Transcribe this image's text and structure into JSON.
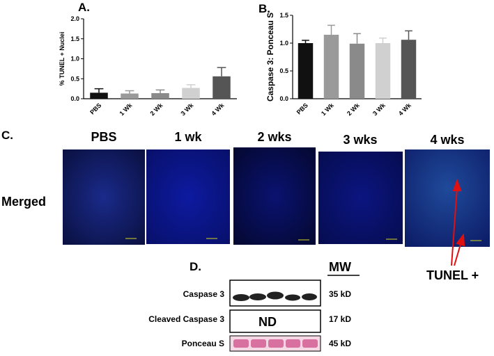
{
  "chart_data": [
    {
      "type": "bar",
      "title": "A.",
      "y_label": "% TUNEL + Nuclei",
      "categories": [
        "PBS",
        "1 Wk",
        "2 Wk",
        "3 Wk",
        "4 Wk"
      ],
      "values": [
        0.15,
        0.13,
        0.14,
        0.27,
        0.56
      ],
      "errors": [
        0.1,
        0.07,
        0.08,
        0.08,
        0.22
      ],
      "colors": [
        "#111111",
        "#9a9a9a",
        "#8a8a8a",
        "#d0d0d0",
        "#555555"
      ],
      "ylim": [
        0,
        2
      ],
      "yticks": [
        {
          "value": 0,
          "label": "0.0"
        },
        0.5,
        {
          "value": 1,
          "label": "1.0"
        },
        1.5,
        {
          "value": 2,
          "label": "2.0"
        }
      ]
    },
    {
      "type": "bar",
      "title": "B.",
      "y_label": "Caspase 3: Ponceau S",
      "categories": [
        "PBS",
        "1 Wk",
        "2 Wk",
        "3 Wk",
        "4 Wk"
      ],
      "values": [
        1.0,
        1.15,
        0.99,
        1.0,
        1.06
      ],
      "errors": [
        0.05,
        0.17,
        0.18,
        0.09,
        0.16
      ],
      "colors": [
        "#111111",
        "#9a9a9a",
        "#8a8a8a",
        "#d0d0d0",
        "#555555"
      ],
      "ylim": [
        0,
        1.5
      ],
      "yticks": [
        {
          "value": 0,
          "label": "0.0"
        },
        0.5,
        {
          "value": 1,
          "label": "1.0"
        },
        1.5
      ]
    }
  ],
  "panel_c": {
    "label": "C.",
    "headers": [
      "PBS",
      "1 wk",
      "2 wks",
      "3 wks",
      "4 wks"
    ],
    "row_label": "Merged",
    "annotation": "TUNEL +"
  },
  "panel_d": {
    "label": "D.",
    "mw_header": "MW",
    "rows": [
      {
        "label": "Caspase 3",
        "mw": "35 kD"
      },
      {
        "label": "Cleaved Caspase 3",
        "mw": "17 kD",
        "note": "ND"
      },
      {
        "label": "Ponceau S",
        "mw": "45 kD"
      }
    ]
  }
}
